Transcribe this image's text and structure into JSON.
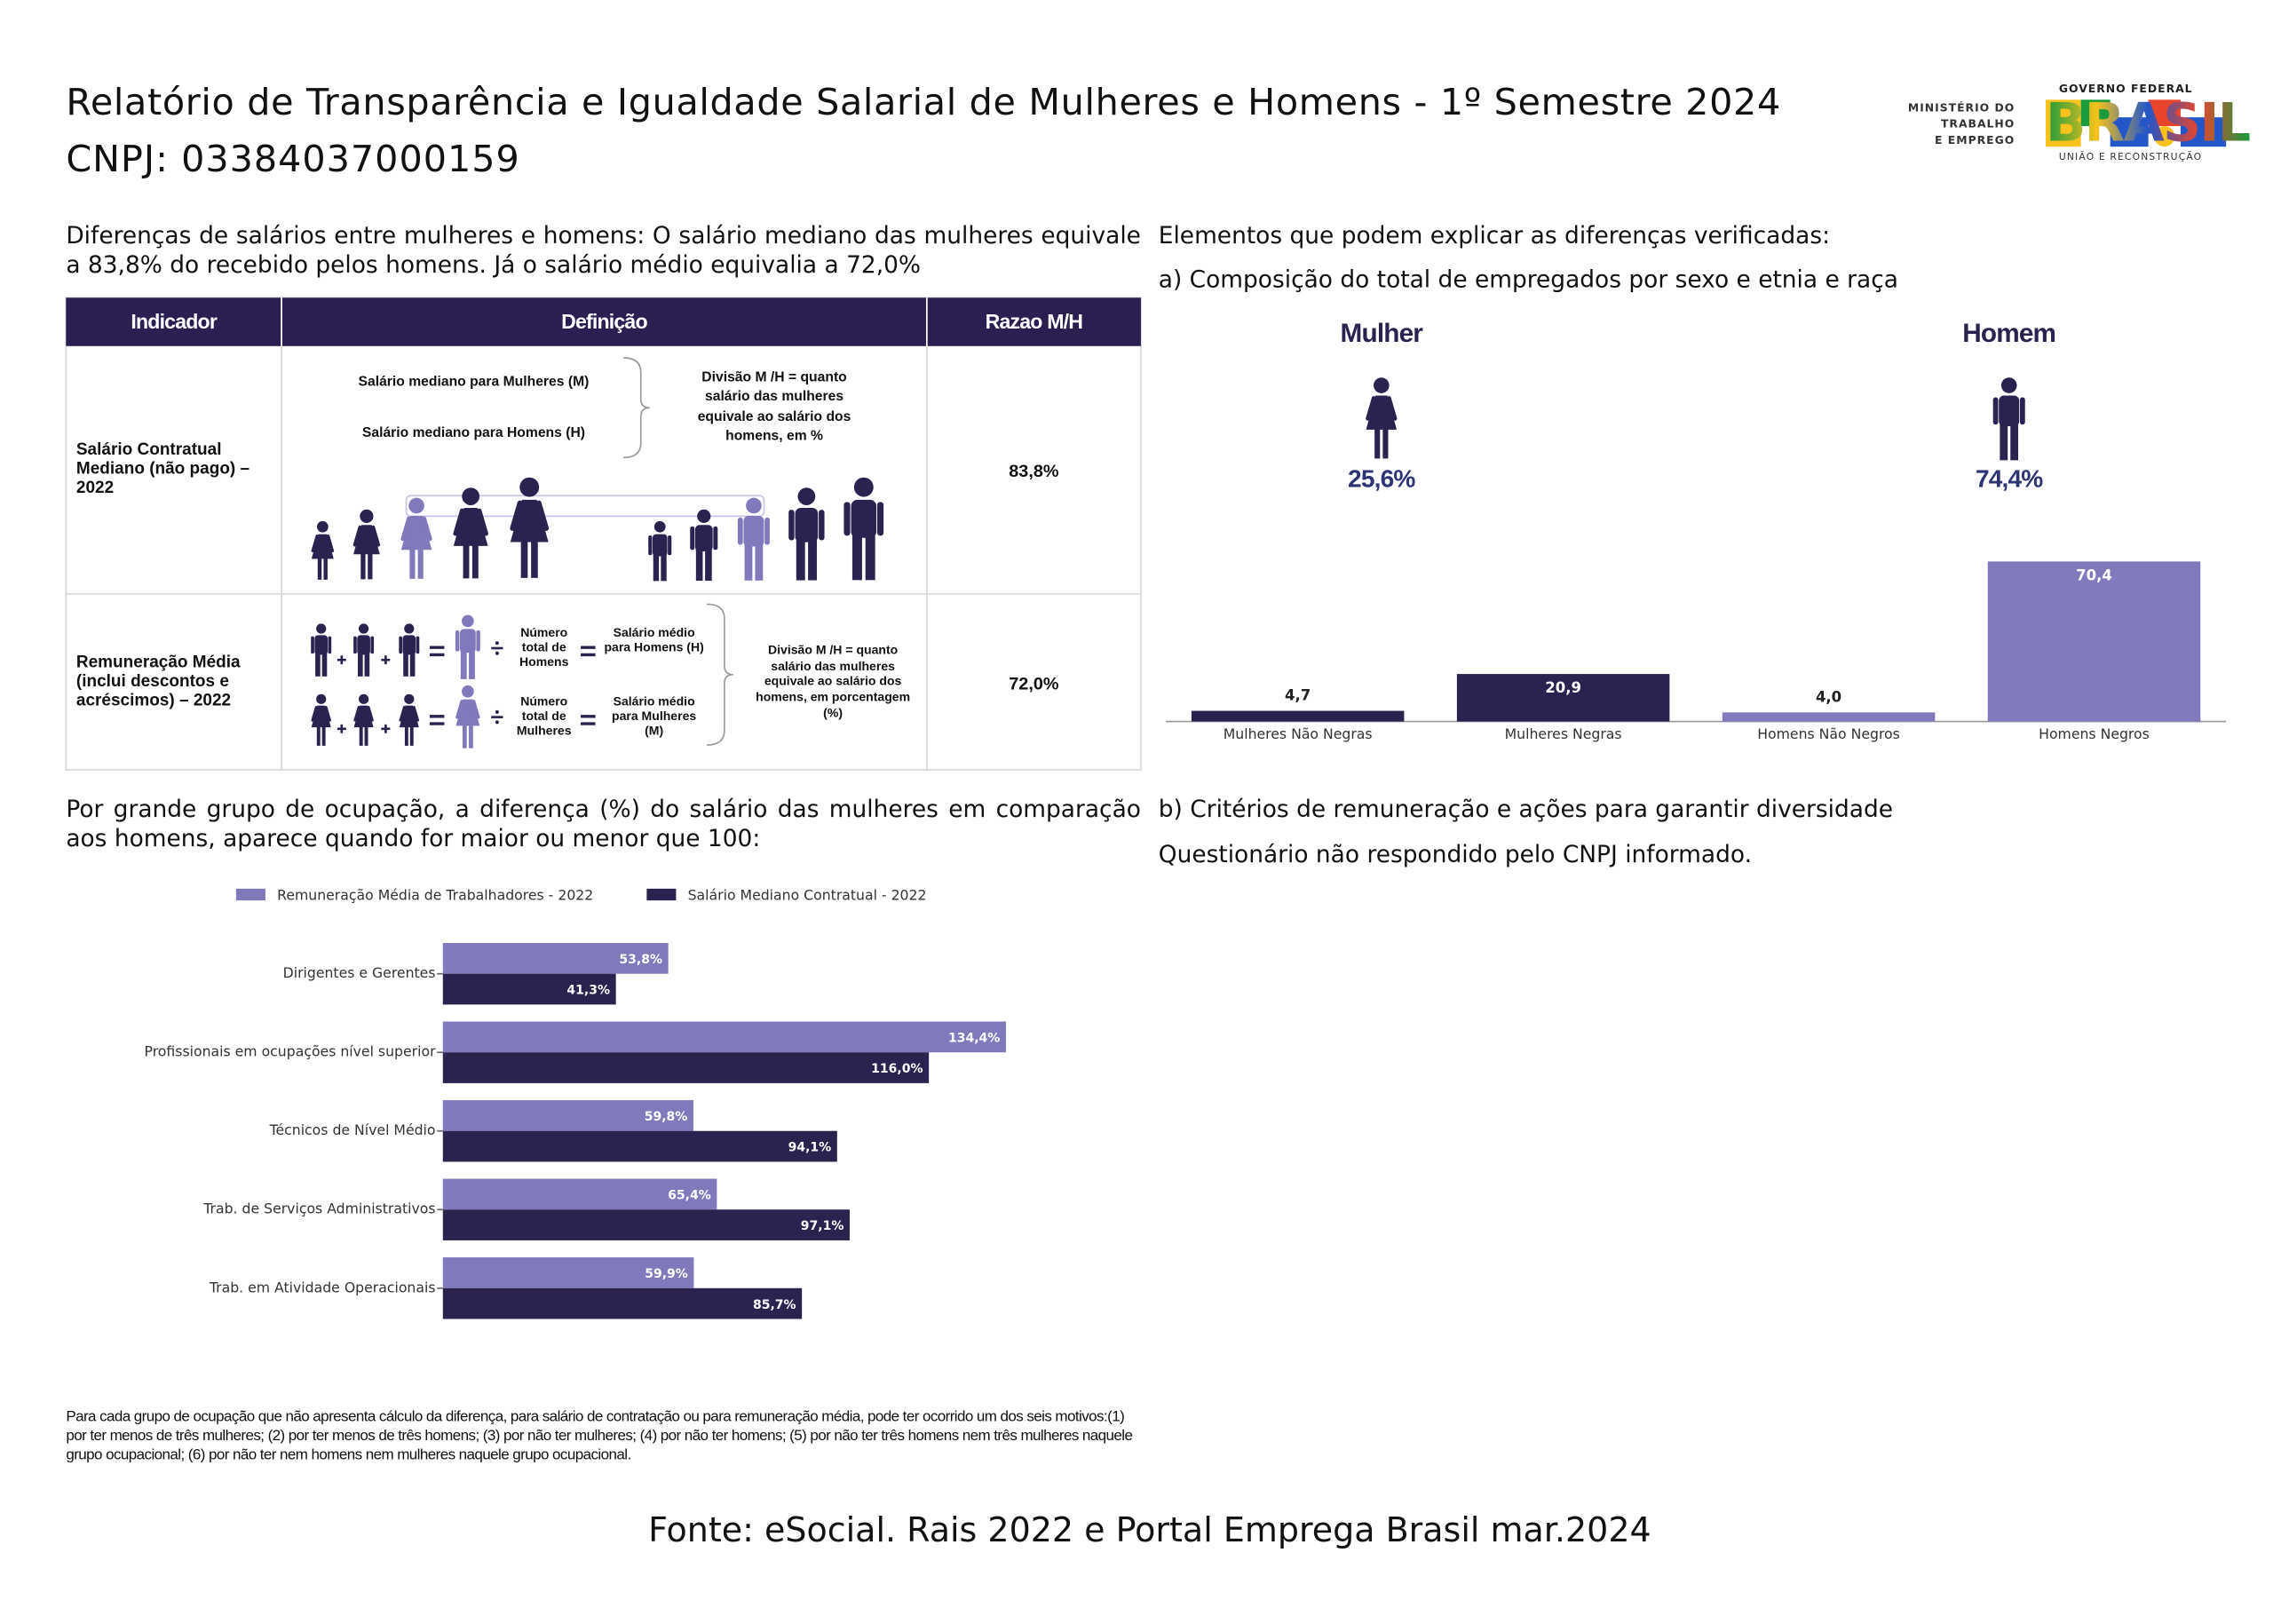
{
  "header": {
    "title": "Relatório de Transparência e Igualdade Salarial de Mulheres e Homens - 1º Semestre 2024",
    "cnpj": "CNPJ: 03384037000159"
  },
  "logo": {
    "ministry": [
      "MINISTÉRIO DO",
      "TRABALHO",
      "E EMPREGO"
    ],
    "gov": "GOVERNO FEDERAL",
    "brasil": "BRASIL",
    "motto": "UNIÃO E RECONSTRUÇÃO"
  },
  "intro": "Diferenças de salários entre mulheres e homens: O salário mediano das mulheres equivale a 83,8% do recebido pelos homens. Já o salário médio equivalia a 72,0%",
  "table": {
    "headers": [
      "Indicador",
      "Definição",
      "Razao M/H"
    ],
    "rows": [
      {
        "indicator": "Salário Contratual Mediano (não pago) – 2022",
        "definition": [
          "Salário mediano para Mulheres (M)",
          "Salário mediano para Homens (H)",
          "Divisão M /H = quanto salário das mulheres equivale ao salário dos homens, em %"
        ],
        "ratio": "83,8%"
      },
      {
        "indicator": "Remuneração Média (inclui descontos e acréscimos) – 2022",
        "definition": [
          "Número total de Homens",
          "Salário médio para Homens (H)",
          "Número total de Mulheres",
          "Salário médio para Mulheres (M)",
          "Divisão M /H = quanto salário das mulheres equivale ao salário dos homens, em porcentagem (%)"
        ],
        "ratio": "72,0%"
      }
    ]
  },
  "right_heading": "Elementos que podem explicar as diferenças verificadas:",
  "composition": {
    "heading": "a) Composição do total de empregados por sexo e etnia e raça",
    "groups": [
      {
        "label": "Mulher",
        "share": "25,6%"
      },
      {
        "label": "Homem",
        "share": "74,4%"
      }
    ]
  },
  "occupation_heading": "Por grande grupo de ocupação, a diferença (%) do salário das mulheres em comparação aos homens, aparece quando for maior ou menor que 100:",
  "chart_data": [
    {
      "type": "bar",
      "categories": [
        "Mulheres Não Negras",
        "Mulheres Negras",
        "Homens Não Negros",
        "Homens Negros"
      ],
      "values": [
        4.7,
        20.9,
        4.0,
        70.4
      ],
      "value_labels": [
        "4,7",
        "20,9",
        "4,0",
        "70,4"
      ],
      "colors": [
        "#2b2250",
        "#2b2250",
        "#8079bb",
        "#8079bb"
      ]
    },
    {
      "type": "barh",
      "categories": [
        "Dirigentes e Gerentes",
        "Profissionais em ocupações nível superior",
        "Técnicos de Nível Médio",
        "Trab. de Serviços Administrativos",
        "Trab. em Atividade Operacionais"
      ],
      "series": [
        {
          "name": "Remuneração Média de Trabalhadores - 2022",
          "color": "#8079bb",
          "values": [
            53.8,
            134.4,
            59.8,
            65.4,
            59.9
          ],
          "value_labels": [
            "53,8%",
            "134,4%",
            "59,8%",
            "65,4%",
            "59,9%"
          ]
        },
        {
          "name": "Salário Mediano Contratual - 2022",
          "color": "#2b2250",
          "values": [
            41.3,
            116.0,
            94.1,
            97.1,
            85.7
          ],
          "value_labels": [
            "41,3%",
            "116,0%",
            "94,1%",
            "97,1%",
            "85,7%"
          ]
        }
      ],
      "legend": "top"
    }
  ],
  "section_b": {
    "heading": "b) Critérios de remuneração e ações para garantir diversidade",
    "text": "Questionário não respondido pelo CNPJ informado."
  },
  "footnote": "Para cada grupo de ocupação que não apresenta cálculo da diferença, para salário de contratação ou para remuneração média, pode ter ocorrido um dos seis motivos:(1) por ter menos de três mulheres; (2) por ter menos de três homens; (3) por não ter mulheres; (4) por não ter homens; (5) por não ter três homens nem três mulheres naquele grupo ocupacional; (6) por não ter nem homens nem mulheres naquele grupo ocupacional.",
  "source": "Fonte: eSocial. Rais 2022 e Portal Emprega Brasil mar.2024"
}
